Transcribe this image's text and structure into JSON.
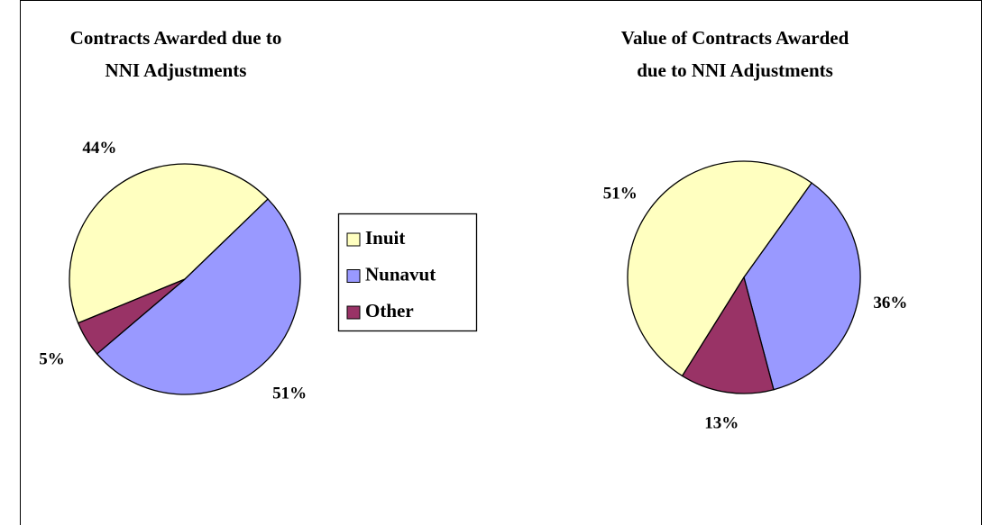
{
  "chart_data": [
    {
      "type": "pie",
      "title": [
        "Contracts Awarded due to",
        "NNI Adjustments"
      ],
      "categories": [
        "Inuit",
        "Nunavut",
        "Other"
      ],
      "values": [
        44,
        51,
        5
      ],
      "value_labels": [
        "44%",
        "51%",
        "5%"
      ],
      "colors": [
        "#ffffc0",
        "#9999ff",
        "#993366"
      ],
      "legend": "right"
    },
    {
      "type": "pie",
      "title": [
        "Value of Contracts Awarded",
        "due to NNI Adjustments"
      ],
      "categories": [
        "Inuit",
        "Nunavut",
        "Other"
      ],
      "values": [
        51,
        36,
        13
      ],
      "value_labels": [
        "51%",
        "36%",
        "13%"
      ],
      "colors": [
        "#ffffc0",
        "#9999ff",
        "#993366"
      ]
    }
  ]
}
